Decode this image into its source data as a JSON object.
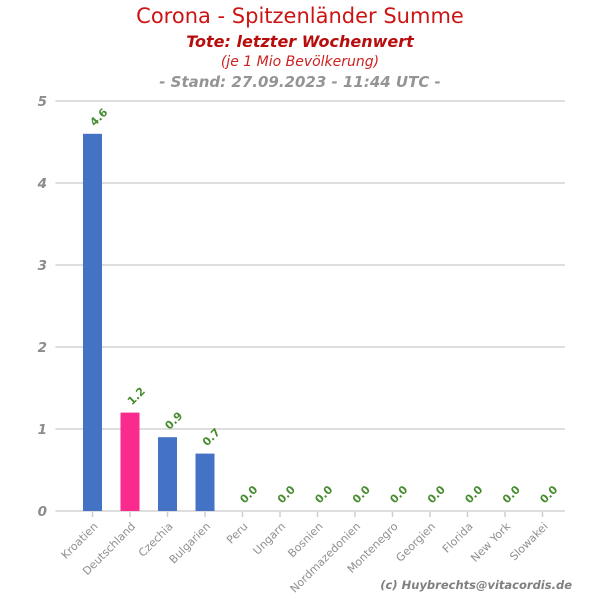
{
  "header": {
    "title": "Corona - Spitzenländer Summe",
    "subtitle": "Tote: letzter Wochenwert",
    "per_capita_note": "(je 1 Mio Bevölkerung)",
    "as_of": "- Stand: 27.09.2023 - 11:44 UTC -",
    "title_color": "#cc1414",
    "subtitle_color": "#b80d0d",
    "note_color": "#cc2222",
    "as_of_color": "#949494"
  },
  "credit": {
    "text": "(c) Huybrechts@vitacordis.de",
    "color": "#7f7f7f"
  },
  "chart_data": {
    "type": "bar",
    "title": "Corona - Spitzenländer Summe",
    "subtitle": "Tote: letzter Wochenwert (je 1 Mio Bevölkerung)",
    "as_of": "27.09.2023 - 11:44 UTC",
    "categories": [
      "Kroatien",
      "Deutschland",
      "Czechia",
      "Bulgarien",
      "Peru",
      "Ungarn",
      "Bosnien",
      "Nordmazedonien",
      "Montenegro",
      "Georgien",
      "Florida",
      "New York",
      "Slowakei"
    ],
    "values": [
      4.6,
      1.2,
      0.9,
      0.7,
      0.0,
      0.0,
      0.0,
      0.0,
      0.0,
      0.0,
      0.0,
      0.0,
      0.0
    ],
    "highlight_category": "Deutschland",
    "xlabel": "",
    "ylabel": "",
    "ylim": [
      0,
      5
    ],
    "yticks": [
      0,
      1,
      2,
      3,
      4,
      5
    ],
    "grid": true,
    "legend": false,
    "colors": {
      "bar_blue": "#4472c4",
      "bar_pink": "#fb2b8d",
      "value_green": "#478d2f",
      "grid_gray": "#dedede",
      "ytick_gray": "#8c8c8c",
      "xlabel_gray": "#8f8f8f",
      "tick_gray": "#cfcfcf"
    }
  }
}
